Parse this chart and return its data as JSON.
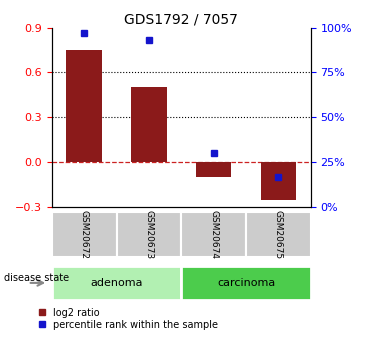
{
  "title": "GDS1792 / 7057",
  "samples": [
    "GSM20672",
    "GSM20673",
    "GSM20674",
    "GSM20675"
  ],
  "log2_ratio": [
    0.75,
    0.5,
    -0.1,
    -0.25
  ],
  "percentile_rank": [
    97,
    93,
    30,
    17
  ],
  "ylim_left": [
    -0.3,
    0.9
  ],
  "ylim_right": [
    0,
    100
  ],
  "yticks_left": [
    -0.3,
    0.0,
    0.3,
    0.6,
    0.9
  ],
  "yticks_right": [
    0,
    25,
    50,
    75,
    100
  ],
  "yticklabels_right": [
    "0%",
    "25%",
    "50%",
    "75%",
    "100%"
  ],
  "groups": [
    {
      "label": "adenoma",
      "indices": [
        0,
        1
      ],
      "color": "#b2f0b2"
    },
    {
      "label": "carcinoma",
      "indices": [
        2,
        3
      ],
      "color": "#4ccc4c"
    }
  ],
  "bar_color": "#8B1A1A",
  "dot_color": "#1414CC",
  "bar_width": 0.55,
  "zero_line_color": "#CC2222",
  "sample_box_color": "#cccccc",
  "disease_state_label": "disease state",
  "legend_items": [
    "log2 ratio",
    "percentile rank within the sample"
  ]
}
